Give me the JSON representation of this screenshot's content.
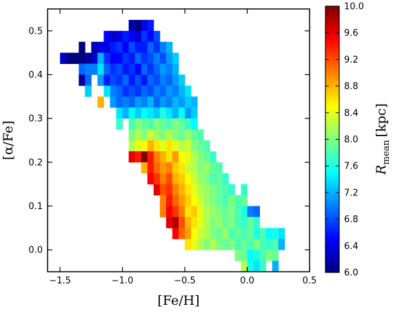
{
  "chart_data": {
    "type": "heatmap",
    "title": "",
    "xlabel": "[Fe/H]",
    "ylabel": "[α/Fe]",
    "xlim": [
      -1.6,
      0.5
    ],
    "ylim": [
      -0.05,
      0.55
    ],
    "xticks": [
      -1.5,
      -1.0,
      -0.5,
      0.0,
      0.5
    ],
    "xtick_labels": [
      "−1.5",
      "−1.0",
      "−0.5",
      "0.0",
      "0.5"
    ],
    "yticks": [
      0.0,
      0.1,
      0.2,
      0.3,
      0.4,
      0.5
    ],
    "ytick_labels": [
      "0.0",
      "0.1",
      "0.2",
      "0.3",
      "0.4",
      "0.5"
    ],
    "bin_size": {
      "feh": 0.05,
      "alpha": 0.025
    },
    "colorbar": {
      "label_main": "R",
      "label_sub": "mean",
      "label_unit": "[kpc]",
      "range": [
        6.0,
        10.0
      ],
      "ticks": [
        6.0,
        6.4,
        6.8,
        7.2,
        7.6,
        8.0,
        8.4,
        8.8,
        9.2,
        9.6,
        10.0
      ],
      "tick_labels": [
        "6.0",
        "6.4",
        "6.8",
        "7.2",
        "7.6",
        "8.0",
        "8.4",
        "8.8",
        "9.2",
        "9.6",
        "10.0"
      ],
      "colormap": "jet"
    },
    "cells_columns": [
      "feh",
      "alpha",
      "r_mean_kpc"
    ],
    "cells": [
      [
        -1.475,
        0.4375,
        6.3
      ],
      [
        -1.425,
        0.4375,
        6.0
      ],
      [
        -1.375,
        0.4375,
        6.0
      ],
      [
        -1.325,
        0.4625,
        6.0
      ],
      [
        -1.275,
        0.4375,
        6.1
      ],
      [
        -1.225,
        0.4375,
        6.3
      ],
      [
        -1.325,
        0.4375,
        6.0
      ],
      [
        -1.325,
        0.4125,
        6.9
      ],
      [
        -1.275,
        0.4125,
        7.0
      ],
      [
        -1.325,
        0.3875,
        6.1
      ],
      [
        -1.275,
        0.3875,
        6.9
      ],
      [
        -1.275,
        0.3625,
        7.3
      ],
      [
        -1.225,
        0.4625,
        6.2
      ],
      [
        -1.225,
        0.4125,
        7.0
      ],
      [
        -1.175,
        0.4625,
        6.4
      ],
      [
        -1.175,
        0.4375,
        7.2
      ],
      [
        -1.175,
        0.4125,
        7.4
      ],
      [
        -1.175,
        0.3875,
        7.1
      ],
      [
        -1.125,
        0.4875,
        6.5
      ],
      [
        -1.075,
        0.4875,
        6.3
      ],
      [
        -1.125,
        0.4625,
        6.4
      ],
      [
        -1.075,
        0.4625,
        6.6
      ],
      [
        -1.125,
        0.4375,
        6.7
      ],
      [
        -1.075,
        0.4375,
        6.5
      ],
      [
        -1.125,
        0.4125,
        6.9
      ],
      [
        -1.075,
        0.4125,
        6.7
      ],
      [
        -1.125,
        0.3875,
        6.6
      ],
      [
        -1.075,
        0.3875,
        6.8
      ],
      [
        -1.075,
        0.3625,
        7.0
      ],
      [
        -1.125,
        0.3625,
        7.4
      ],
      [
        -1.025,
        0.4875,
        6.4
      ],
      [
        -0.975,
        0.4875,
        6.6
      ],
      [
        -0.925,
        0.5125,
        6.2
      ],
      [
        -0.875,
        0.5125,
        6.0
      ],
      [
        -0.825,
        0.5125,
        6.4
      ],
      [
        -0.775,
        0.5125,
        6.6
      ],
      [
        -1.025,
        0.4625,
        6.7
      ],
      [
        -0.975,
        0.4625,
        6.5
      ],
      [
        -0.925,
        0.4875,
        6.5
      ],
      [
        -0.875,
        0.4875,
        6.3
      ],
      [
        -0.825,
        0.4875,
        6.7
      ],
      [
        -0.775,
        0.4875,
        6.5
      ],
      [
        -0.725,
        0.4875,
        6.8
      ],
      [
        -1.025,
        0.4375,
        6.5
      ],
      [
        -0.975,
        0.4375,
        6.7
      ],
      [
        -0.925,
        0.4625,
        6.8
      ],
      [
        -0.875,
        0.4625,
        6.6
      ],
      [
        -0.825,
        0.4625,
        6.6
      ],
      [
        -0.775,
        0.4625,
        6.9
      ],
      [
        -0.725,
        0.4625,
        6.7
      ],
      [
        -0.675,
        0.4625,
        7.0
      ],
      [
        -1.025,
        0.4125,
        6.8
      ],
      [
        -0.975,
        0.4125,
        6.6
      ],
      [
        -0.925,
        0.4375,
        6.6
      ],
      [
        -0.875,
        0.4375,
        6.9
      ],
      [
        -0.825,
        0.4375,
        6.7
      ],
      [
        -0.775,
        0.4375,
        6.8
      ],
      [
        -0.725,
        0.4375,
        7.0
      ],
      [
        -0.675,
        0.4375,
        6.8
      ],
      [
        -0.625,
        0.4625,
        7.2
      ],
      [
        -0.625,
        0.4375,
        7.1
      ],
      [
        -1.025,
        0.3875,
        6.7
      ],
      [
        -0.975,
        0.3875,
        6.9
      ],
      [
        -0.925,
        0.4125,
        6.7
      ],
      [
        -0.875,
        0.4125,
        6.5
      ],
      [
        -0.825,
        0.4125,
        6.9
      ],
      [
        -0.775,
        0.4125,
        6.7
      ],
      [
        -0.725,
        0.4125,
        6.9
      ],
      [
        -0.675,
        0.4125,
        7.1
      ],
      [
        -0.625,
        0.4125,
        7.0
      ],
      [
        -0.575,
        0.4375,
        7.3
      ],
      [
        -0.575,
        0.4125,
        7.2
      ],
      [
        -1.025,
        0.3625,
        6.9
      ],
      [
        -0.975,
        0.3625,
        6.7
      ],
      [
        -0.925,
        0.3875,
        6.6
      ],
      [
        -0.875,
        0.3875,
        6.8
      ],
      [
        -0.825,
        0.3875,
        6.6
      ],
      [
        -0.775,
        0.3875,
        6.9
      ],
      [
        -0.725,
        0.3875,
        6.8
      ],
      [
        -0.675,
        0.3875,
        7.0
      ],
      [
        -0.625,
        0.3875,
        6.9
      ],
      [
        -0.575,
        0.3875,
        7.1
      ],
      [
        -0.525,
        0.3875,
        7.3
      ],
      [
        -1.075,
        0.3375,
        7.1
      ],
      [
        -1.025,
        0.3375,
        6.9
      ],
      [
        -0.975,
        0.3375,
        7.0
      ],
      [
        -0.925,
        0.3625,
        6.8
      ],
      [
        -0.875,
        0.3625,
        6.7
      ],
      [
        -0.825,
        0.3625,
        6.9
      ],
      [
        -0.775,
        0.3625,
        6.8
      ],
      [
        -0.725,
        0.3625,
        7.0
      ],
      [
        -0.675,
        0.3625,
        6.9
      ],
      [
        -0.625,
        0.3625,
        7.1
      ],
      [
        -0.575,
        0.3625,
        7.0
      ],
      [
        -0.525,
        0.3625,
        7.2
      ],
      [
        -0.475,
        0.3625,
        7.4
      ],
      [
        -0.925,
        0.3375,
        6.9
      ],
      [
        -0.875,
        0.3375,
        7.1
      ],
      [
        -0.825,
        0.3375,
        7.0
      ],
      [
        -0.775,
        0.3375,
        7.2
      ],
      [
        -0.725,
        0.3375,
        6.9
      ],
      [
        -0.675,
        0.3375,
        7.1
      ],
      [
        -0.625,
        0.3375,
        7.0
      ],
      [
        -0.575,
        0.3375,
        7.2
      ],
      [
        -0.525,
        0.3375,
        7.1
      ],
      [
        -0.475,
        0.3375,
        7.3
      ],
      [
        -0.425,
        0.3375,
        7.2
      ],
      [
        -1.175,
        0.3375,
        8.8
      ],
      [
        -1.025,
        0.3125,
        7.4
      ],
      [
        -0.975,
        0.3125,
        7.2
      ],
      [
        -0.925,
        0.3125,
        7.5
      ],
      [
        -0.875,
        0.3125,
        7.3
      ],
      [
        -0.825,
        0.3125,
        7.5
      ],
      [
        -0.775,
        0.3125,
        7.4
      ],
      [
        -0.725,
        0.3125,
        7.3
      ],
      [
        -0.675,
        0.3125,
        7.6
      ],
      [
        -0.625,
        0.3125,
        7.4
      ],
      [
        -0.575,
        0.3125,
        7.2
      ],
      [
        -0.525,
        0.3125,
        7.5
      ],
      [
        -0.475,
        0.3125,
        7.1
      ],
      [
        -0.425,
        0.3125,
        7.3
      ],
      [
        -1.025,
        0.2875,
        7.7
      ],
      [
        -0.925,
        0.2875,
        7.8
      ],
      [
        -0.875,
        0.2875,
        8.0
      ],
      [
        -0.825,
        0.2875,
        7.9
      ],
      [
        -0.775,
        0.2875,
        7.8
      ],
      [
        -0.725,
        0.2875,
        8.0
      ],
      [
        -0.675,
        0.2875,
        7.9
      ],
      [
        -0.625,
        0.2875,
        7.8
      ],
      [
        -0.575,
        0.2875,
        8.0
      ],
      [
        -0.525,
        0.2875,
        7.9
      ],
      [
        -0.475,
        0.2875,
        7.7
      ],
      [
        -0.425,
        0.2875,
        7.5
      ],
      [
        -0.925,
        0.2625,
        8.0
      ],
      [
        -0.875,
        0.2625,
        8.2
      ],
      [
        -0.825,
        0.2625,
        8.0
      ],
      [
        -0.775,
        0.2625,
        8.3
      ],
      [
        -0.725,
        0.2625,
        8.1
      ],
      [
        -0.675,
        0.2625,
        8.0
      ],
      [
        -0.625,
        0.2625,
        8.2
      ],
      [
        -0.575,
        0.2625,
        8.0
      ],
      [
        -0.525,
        0.2625,
        7.9
      ],
      [
        -0.475,
        0.2625,
        8.1
      ],
      [
        -0.425,
        0.2625,
        7.9
      ],
      [
        -0.375,
        0.2625,
        7.8
      ],
      [
        -0.925,
        0.2375,
        8.2
      ],
      [
        -0.875,
        0.2375,
        8.4
      ],
      [
        -0.825,
        0.2375,
        8.5
      ],
      [
        -0.775,
        0.2375,
        8.8
      ],
      [
        -0.725,
        0.2375,
        8.6
      ],
      [
        -0.675,
        0.2375,
        8.4
      ],
      [
        -0.625,
        0.2375,
        8.6
      ],
      [
        -0.575,
        0.2375,
        8.4
      ],
      [
        -0.525,
        0.2375,
        8.2
      ],
      [
        -0.475,
        0.2375,
        8.3
      ],
      [
        -0.425,
        0.2375,
        8.0
      ],
      [
        -0.375,
        0.2375,
        7.9
      ],
      [
        -0.325,
        0.2375,
        7.8
      ],
      [
        -0.925,
        0.2125,
        9.6
      ],
      [
        -0.875,
        0.2125,
        9.4
      ],
      [
        -0.825,
        0.2125,
        10.0
      ],
      [
        -0.775,
        0.2125,
        9.4
      ],
      [
        -0.725,
        0.2125,
        9.0
      ],
      [
        -0.675,
        0.2125,
        8.8
      ],
      [
        -0.625,
        0.2125,
        8.6
      ],
      [
        -0.575,
        0.2125,
        8.9
      ],
      [
        -0.525,
        0.2125,
        8.5
      ],
      [
        -0.475,
        0.2125,
        8.4
      ],
      [
        -0.425,
        0.2125,
        8.2
      ],
      [
        -0.375,
        0.2125,
        8.0
      ],
      [
        -0.325,
        0.2125,
        7.9
      ],
      [
        -0.275,
        0.2125,
        7.7
      ],
      [
        -0.825,
        0.1875,
        8.8
      ],
      [
        -0.775,
        0.1875,
        9.4
      ],
      [
        -0.725,
        0.1875,
        9.1
      ],
      [
        -0.675,
        0.1875,
        8.9
      ],
      [
        -0.625,
        0.1875,
        9.0
      ],
      [
        -0.575,
        0.1875,
        8.7
      ],
      [
        -0.525,
        0.1875,
        8.6
      ],
      [
        -0.475,
        0.1875,
        8.3
      ],
      [
        -0.425,
        0.1875,
        8.2
      ],
      [
        -0.375,
        0.1875,
        8.0
      ],
      [
        -0.325,
        0.1875,
        8.1
      ],
      [
        -0.275,
        0.1875,
        7.9
      ],
      [
        -0.225,
        0.1875,
        7.8
      ],
      [
        -0.775,
        0.1625,
        9.5
      ],
      [
        -0.725,
        0.1625,
        9.3
      ],
      [
        -0.675,
        0.1625,
        9.0
      ],
      [
        -0.625,
        0.1625,
        9.2
      ],
      [
        -0.575,
        0.1625,
        8.8
      ],
      [
        -0.525,
        0.1625,
        8.7
      ],
      [
        -0.475,
        0.1625,
        8.5
      ],
      [
        -0.425,
        0.1625,
        8.3
      ],
      [
        -0.375,
        0.1625,
        8.1
      ],
      [
        -0.325,
        0.1625,
        8.0
      ],
      [
        -0.275,
        0.1625,
        7.8
      ],
      [
        -0.225,
        0.1625,
        7.9
      ],
      [
        -0.175,
        0.1625,
        7.7
      ],
      [
        -0.725,
        0.1375,
        9.6
      ],
      [
        -0.675,
        0.1375,
        9.2
      ],
      [
        -0.625,
        0.1375,
        9.3
      ],
      [
        -0.575,
        0.1375,
        9.0
      ],
      [
        -0.525,
        0.1375,
        8.8
      ],
      [
        -0.475,
        0.1375,
        8.6
      ],
      [
        -0.425,
        0.1375,
        8.4
      ],
      [
        -0.375,
        0.1375,
        8.2
      ],
      [
        -0.325,
        0.1375,
        8.1
      ],
      [
        -0.275,
        0.1375,
        8.0
      ],
      [
        -0.225,
        0.1375,
        7.9
      ],
      [
        -0.175,
        0.1375,
        7.8
      ],
      [
        -0.125,
        0.1375,
        7.7
      ],
      [
        -0.025,
        0.1375,
        7.7
      ],
      [
        -0.675,
        0.1125,
        9.0
      ],
      [
        -0.625,
        0.1125,
        9.4
      ],
      [
        -0.575,
        0.1125,
        9.1
      ],
      [
        -0.525,
        0.1125,
        8.9
      ],
      [
        -0.475,
        0.1125,
        8.7
      ],
      [
        -0.425,
        0.1125,
        8.5
      ],
      [
        -0.375,
        0.1125,
        8.3
      ],
      [
        -0.325,
        0.1125,
        8.1
      ],
      [
        -0.275,
        0.1125,
        8.0
      ],
      [
        -0.225,
        0.1125,
        7.9
      ],
      [
        -0.175,
        0.1125,
        7.8
      ],
      [
        -0.125,
        0.1125,
        8.0
      ],
      [
        -0.075,
        0.1125,
        7.8
      ],
      [
        -0.025,
        0.1125,
        7.9
      ],
      [
        -0.675,
        0.0875,
        9.0
      ],
      [
        -0.625,
        0.0875,
        9.5
      ],
      [
        -0.575,
        0.0875,
        9.3
      ],
      [
        -0.525,
        0.0875,
        9.0
      ],
      [
        -0.475,
        0.0875,
        8.6
      ],
      [
        -0.425,
        0.0875,
        8.7
      ],
      [
        -0.375,
        0.0875,
        8.4
      ],
      [
        -0.325,
        0.0875,
        8.2
      ],
      [
        -0.275,
        0.0875,
        8.1
      ],
      [
        -0.225,
        0.0875,
        8.0
      ],
      [
        -0.175,
        0.0875,
        7.9
      ],
      [
        -0.125,
        0.0875,
        8.0
      ],
      [
        -0.075,
        0.0875,
        7.8
      ],
      [
        -0.025,
        0.0875,
        7.6
      ],
      [
        0.025,
        0.0875,
        7.0
      ],
      [
        0.075,
        0.0875,
        6.9
      ],
      [
        -0.625,
        0.0625,
        9.6
      ],
      [
        -0.575,
        0.0625,
        9.8
      ],
      [
        -0.525,
        0.0625,
        9.2
      ],
      [
        -0.475,
        0.0625,
        8.8
      ],
      [
        -0.425,
        0.0625,
        8.6
      ],
      [
        -0.375,
        0.0625,
        8.4
      ],
      [
        -0.325,
        0.0625,
        8.2
      ],
      [
        -0.275,
        0.0625,
        8.0
      ],
      [
        -0.225,
        0.0625,
        8.1
      ],
      [
        -0.175,
        0.0625,
        7.9
      ],
      [
        -0.125,
        0.0625,
        8.0
      ],
      [
        -0.075,
        0.0625,
        7.8
      ],
      [
        -0.025,
        0.0625,
        7.7
      ],
      [
        0.025,
        0.0625,
        7.9
      ],
      [
        0.075,
        0.0625,
        7.7
      ],
      [
        -0.575,
        0.0375,
        9.5
      ],
      [
        -0.525,
        0.0375,
        9.1
      ],
      [
        -0.475,
        0.0375,
        8.9
      ],
      [
        -0.425,
        0.0375,
        8.5
      ],
      [
        -0.375,
        0.0375,
        8.3
      ],
      [
        -0.325,
        0.0375,
        8.2
      ],
      [
        -0.275,
        0.0375,
        8.0
      ],
      [
        -0.225,
        0.0375,
        7.9
      ],
      [
        -0.175,
        0.0375,
        8.1
      ],
      [
        -0.125,
        0.0375,
        7.8
      ],
      [
        -0.075,
        0.0375,
        7.9
      ],
      [
        -0.025,
        0.0375,
        7.8
      ],
      [
        0.025,
        0.0375,
        7.9
      ],
      [
        0.075,
        0.0375,
        7.6
      ],
      [
        0.125,
        0.0375,
        7.8
      ],
      [
        0.175,
        0.0375,
        7.5
      ],
      [
        0.225,
        0.0375,
        7.6
      ],
      [
        0.275,
        0.0375,
        7.4
      ],
      [
        -0.475,
        0.0125,
        8.6
      ],
      [
        -0.425,
        0.0125,
        8.4
      ],
      [
        -0.375,
        0.0125,
        8.2
      ],
      [
        -0.325,
        0.0125,
        8.0
      ],
      [
        -0.275,
        0.0125,
        8.2
      ],
      [
        -0.225,
        0.0125,
        8.0
      ],
      [
        -0.175,
        0.0125,
        7.9
      ],
      [
        -0.125,
        0.0125,
        8.0
      ],
      [
        -0.075,
        0.0125,
        7.8
      ],
      [
        -0.025,
        0.0125,
        7.9
      ],
      [
        0.025,
        0.0125,
        7.8
      ],
      [
        0.075,
        0.0125,
        8.0
      ],
      [
        0.125,
        0.0125,
        7.8
      ],
      [
        0.175,
        0.0125,
        7.7
      ],
      [
        0.225,
        0.0125,
        7.8
      ],
      [
        0.275,
        0.0125,
        7.2
      ],
      [
        -0.075,
        -0.0125,
        8.0
      ],
      [
        -0.025,
        -0.0125,
        7.9
      ],
      [
        0.025,
        -0.0125,
        7.5
      ],
      [
        0.075,
        -0.0125,
        7.6
      ],
      [
        0.125,
        -0.0125,
        7.8
      ],
      [
        0.175,
        -0.0125,
        8.0
      ],
      [
        0.225,
        -0.0125,
        7.9
      ],
      [
        -0.025,
        -0.0375,
        8.2
      ],
      [
        0.025,
        -0.0375,
        7.6
      ],
      [
        0.075,
        -0.0375,
        7.4
      ],
      [
        0.125,
        -0.0375,
        7.7
      ],
      [
        0.225,
        -0.0375,
        7.2
      ]
    ]
  }
}
